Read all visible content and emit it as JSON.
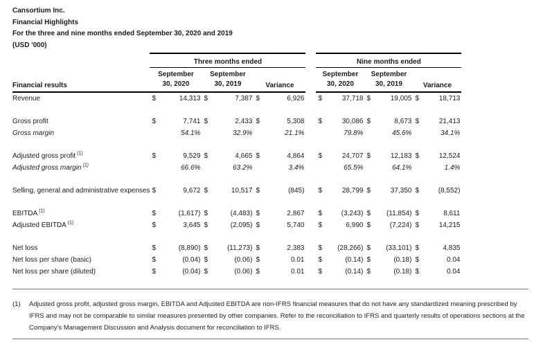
{
  "doc_header": {
    "company": "Cansortium Inc.",
    "title": "Financial Highlights",
    "period_line": "For the three and nine months ended September 30, 2020 and 2019",
    "units": "(USD '000)"
  },
  "table": {
    "row_header_label": "Financial results",
    "groups": [
      {
        "label": "Three months ended"
      },
      {
        "label": "Nine months ended"
      }
    ],
    "columns": {
      "period_2020": [
        "September",
        "30, 2020"
      ],
      "period_2019": [
        "September",
        "30, 2019"
      ],
      "variance": "Variance"
    },
    "currency_symbol": "$",
    "rows": [
      {
        "label": "Revenue",
        "sup": "",
        "currency": true,
        "italic": false,
        "spacer_before": false,
        "values": [
          "14,313",
          "7,387",
          "6,926",
          "37,718",
          "19,005",
          "18,713"
        ]
      },
      {
        "label": "Gross profit",
        "sup": "",
        "currency": true,
        "italic": false,
        "spacer_before": true,
        "values": [
          "7,741",
          "2,433",
          "5,308",
          "30,086",
          "8,673",
          "21,413"
        ]
      },
      {
        "label": "Gross margin",
        "sup": "",
        "currency": false,
        "italic": true,
        "spacer_before": false,
        "values": [
          "54.1%",
          "32.9%",
          "21.1%",
          "79.8%",
          "45.6%",
          "34.1%"
        ]
      },
      {
        "label": "Adjusted gross profit",
        "sup": "(1)",
        "currency": true,
        "italic": false,
        "spacer_before": true,
        "values": [
          "9,529",
          "4,665",
          "4,864",
          "24,707",
          "12,183",
          "12,524"
        ]
      },
      {
        "label": "Adjusted gross margin",
        "sup": "(1)",
        "currency": false,
        "italic": true,
        "spacer_before": false,
        "values": [
          "66.6%",
          "63.2%",
          "3.4%",
          "65.5%",
          "64.1%",
          "1.4%"
        ]
      },
      {
        "label": "Selling, general and administrative expenses",
        "sup": "",
        "currency": true,
        "italic": false,
        "spacer_before": true,
        "values": [
          "9,672",
          "10,517",
          "(845)",
          "28,799",
          "37,350",
          "(8,552)"
        ]
      },
      {
        "label": "EBITDA",
        "sup": "(1)",
        "currency": true,
        "italic": false,
        "spacer_before": true,
        "values": [
          "(1,617)",
          "(4,483)",
          "2,867",
          "(3,243)",
          "(11,854)",
          "8,611"
        ]
      },
      {
        "label": "Adjusted EBITDA",
        "sup": "(1)",
        "currency": true,
        "italic": false,
        "spacer_before": false,
        "values": [
          "3,645",
          "(2,095)",
          "5,740",
          "6,990",
          "(7,224)",
          "14,215"
        ]
      },
      {
        "label": "Net loss",
        "sup": "",
        "currency": true,
        "italic": false,
        "spacer_before": true,
        "values": [
          "(8,890)",
          "(11,273)",
          "2,383",
          "(28,266)",
          "(33,101)",
          "4,835"
        ]
      },
      {
        "label": "Net loss per share (basic)",
        "sup": "",
        "currency": true,
        "italic": false,
        "spacer_before": false,
        "values": [
          "(0.04)",
          "(0.06)",
          "0.01",
          "(0.14)",
          "(0.18)",
          "0.04"
        ]
      },
      {
        "label": "Net loss per share (diluted)",
        "sup": "",
        "currency": true,
        "italic": false,
        "spacer_before": false,
        "values": [
          "(0.04)",
          "(0.06)",
          "0.01",
          "(0.14)",
          "(0.18)",
          "0.04"
        ]
      }
    ]
  },
  "footnote": {
    "marker": "(1)",
    "text": "Adjusted gross profit, adjusted gross margin, EBITDA and Adjusted EBITDA are non-IFRS financial measures that do not have any standardized meaning prescribed by IFRS and may not be comparable to similar measures presented by other companies. Refer to the reconciliation to IFRS and quarterly results of operations sections at the Company's Management Discussion and Analysis document for reconciliation to IFRS."
  }
}
